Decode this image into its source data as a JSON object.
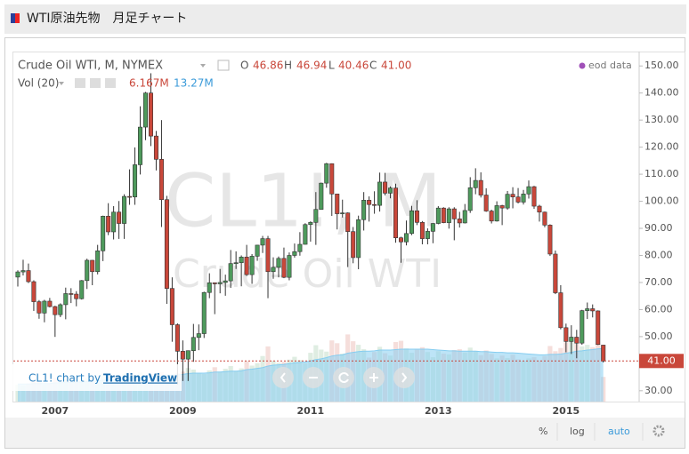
{
  "header": {
    "title": "WTI原油先物　月足チャート"
  },
  "chart_data": {
    "type": "candlestick",
    "symbol": "Crude Oil WTI, M, NYMEX",
    "ohlc_legend": [
      {
        "key": "O",
        "value": "46.86"
      },
      {
        "key": "H",
        "value": "46.94"
      },
      {
        "key": "L",
        "value": "40.46"
      },
      {
        "key": "C",
        "value": "41.00"
      }
    ],
    "volume_legend": {
      "name": "Vol (20)",
      "volume": "6.167M",
      "volume_ma": "13.27M"
    },
    "source": "eod data",
    "watermark": [
      "CL1!, M",
      "Crude Oil WTI"
    ],
    "last_price_label": "41.00",
    "attribution": [
      "CL1! chart by",
      "TradingView"
    ],
    "toolbar": [
      "%",
      "log",
      "auto"
    ],
    "up_color": "#4e9a5c",
    "down_color": "#c9473a",
    "volume_ma_color": "#86cdf0",
    "categories": [
      null,
      null,
      null,
      null,
      null,
      null,
      null,
      "2007",
      null,
      null,
      null,
      null,
      null,
      null,
      null,
      null,
      null,
      null,
      null,
      null,
      null,
      null,
      null,
      null,
      null,
      null,
      null,
      null,
      null,
      null,
      null,
      "2009",
      null,
      null,
      null,
      null,
      null,
      null,
      null,
      null,
      null,
      null,
      null,
      null,
      null,
      null,
      null,
      null,
      null,
      null,
      null,
      null,
      null,
      null,
      null,
      "2011",
      null,
      null,
      null,
      null,
      null,
      null,
      null,
      null,
      null,
      null,
      null,
      null,
      null,
      null,
      null,
      null,
      null,
      null,
      null,
      null,
      null,
      null,
      null,
      "2013",
      null,
      null,
      null,
      null,
      null,
      null,
      null,
      null,
      null,
      null,
      null,
      null,
      null,
      null,
      null,
      null,
      null,
      null,
      null,
      null,
      null,
      null,
      null,
      "2015",
      null,
      null,
      null,
      null,
      null,
      null,
      null
    ],
    "open": [
      72.0,
      73.9,
      74.4,
      70.3,
      62.9,
      58.7,
      63.1,
      61.1,
      58.1,
      61.8,
      65.9,
      65.7,
      64.0,
      70.7,
      78.2,
      74.0,
      81.7,
      94.5,
      88.7,
      96.0,
      91.8,
      101.8,
      101.6,
      113.5,
      127.4,
      140.0,
      124.1,
      115.5,
      100.6,
      67.8,
      54.4,
      44.6,
      41.7,
      44.8,
      49.7,
      51.1,
      66.3,
      69.9,
      69.5,
      70.0,
      70.6,
      77.0,
      77.3,
      79.4,
      72.9,
      79.7,
      83.8,
      86.2,
      74.0,
      75.6,
      78.9,
      71.9,
      80.0,
      81.4,
      84.1,
      91.4,
      92.2,
      97.0,
      106.7,
      113.9,
      102.7,
      95.4,
      95.7,
      88.8,
      79.2,
      93.2,
      100.4,
      98.8,
      98.5,
      107.1,
      103.0,
      104.9,
      86.5,
      85.0,
      88.1,
      96.5,
      92.2,
      86.2,
      88.9,
      91.8,
      97.5,
      92.1,
      97.2,
      93.5,
      92.0,
      96.6,
      105.0,
      107.7,
      102.3,
      96.4,
      92.7,
      98.4,
      97.5,
      102.6,
      101.6,
      99.7,
      102.7,
      105.4,
      98.2,
      96.0,
      91.2,
      80.5,
      66.2,
      53.3,
      48.2,
      49.8,
      47.6,
      59.6,
      60.3,
      59.5,
      46.86
    ],
    "high": [
      74.5,
      78.4,
      77.0,
      70.8,
      63.5,
      63.6,
      64.3,
      61.4,
      62.3,
      68.1,
      67.9,
      66.8,
      70.9,
      78.8,
      78.3,
      83.9,
      94.7,
      99.3,
      98.2,
      100.1,
      102.6,
      111.8,
      119.9,
      135.1,
      140.4,
      147.3,
      126.0,
      130.0,
      102.0,
      71.9,
      54.9,
      48.6,
      44.9,
      54.7,
      54.5,
      66.6,
      73.4,
      70.0,
      75.0,
      72.9,
      82.0,
      81.5,
      80.0,
      83.9,
      80.5,
      83.9,
      87.2,
      87.2,
      79.3,
      79.6,
      82.9,
      81.1,
      84.4,
      88.6,
      91.9,
      92.6,
      103.4,
      106.9,
      114.2,
      114.0,
      102.7,
      100.6,
      95.9,
      90.5,
      94.7,
      103.4,
      101.8,
      103.7,
      110.6,
      110.5,
      105.5,
      106.5,
      86.9,
      92.9,
      98.3,
      100.4,
      92.7,
      90.0,
      92.0,
      98.2,
      97.8,
      97.8,
      97.8,
      96.1,
      99.0,
      108.9,
      112.2,
      110.7,
      104.8,
      96.9,
      100.0,
      98.7,
      103.8,
      105.2,
      104.9,
      104.2,
      107.7,
      105.7,
      98.7,
      96.2,
      91.5,
      81.8,
      69.0,
      54.8,
      54.2,
      52.5,
      59.9,
      62.6,
      61.9,
      59.7,
      46.94
    ],
    "low": [
      68.5,
      72.6,
      69.8,
      59.5,
      56.6,
      55.3,
      60.8,
      49.9,
      57.2,
      56.4,
      62.4,
      61.2,
      63.7,
      67.6,
      69.0,
      73.0,
      77.9,
      87.5,
      85.9,
      86.1,
      86.1,
      98.7,
      98.7,
      109.9,
      122.6,
      120.4,
      111.4,
      90.5,
      62.1,
      48.1,
      32.4,
      33.6,
      33.6,
      40.7,
      45.0,
      49.5,
      64.2,
      58.3,
      66.0,
      65.1,
      68.0,
      75.0,
      68.6,
      72.4,
      69.5,
      78.0,
      80.9,
      64.2,
      71.4,
      71.9,
      71.6,
      70.8,
      79.2,
      79.9,
      84.0,
      85.1,
      83.9,
      96.9,
      105.0,
      94.6,
      89.6,
      94.0,
      75.7,
      77.1,
      74.9,
      89.2,
      92.5,
      95.4,
      96.2,
      102.2,
      101.1,
      84.7,
      77.3,
      83.7,
      87.5,
      91.2,
      84.1,
      84.1,
      84.5,
      91.5,
      91.9,
      89.9,
      85.6,
      90.3,
      91.8,
      95.7,
      102.6,
      101.4,
      96.1,
      91.8,
      92.5,
      91.2,
      96.9,
      97.4,
      99.2,
      98.8,
      101.0,
      97.2,
      92.5,
      90.4,
      79.8,
      65.7,
      52.7,
      44.2,
      43.6,
      42.0,
      47.0,
      56.5,
      57.1,
      46.9,
      40.46
    ],
    "close": [
      73.9,
      74.4,
      70.3,
      62.9,
      58.7,
      63.1,
      61.1,
      58.1,
      61.8,
      65.9,
      65.7,
      64.0,
      70.7,
      78.2,
      74.0,
      81.7,
      94.5,
      88.7,
      96.0,
      91.8,
      101.8,
      101.6,
      113.5,
      127.4,
      140.0,
      124.1,
      115.5,
      100.6,
      67.8,
      54.4,
      44.6,
      41.7,
      44.8,
      49.7,
      51.1,
      66.3,
      69.9,
      69.5,
      70.0,
      70.6,
      77.0,
      77.3,
      79.4,
      72.9,
      79.7,
      83.8,
      86.2,
      74.0,
      75.6,
      78.9,
      71.9,
      80.0,
      81.4,
      84.1,
      91.4,
      92.2,
      97.0,
      106.7,
      113.9,
      102.7,
      95.4,
      95.7,
      88.8,
      79.2,
      93.2,
      100.4,
      98.8,
      98.5,
      107.1,
      103.0,
      104.9,
      86.5,
      85.0,
      88.1,
      96.5,
      92.2,
      86.2,
      88.9,
      91.8,
      97.5,
      92.1,
      97.2,
      93.5,
      92.0,
      96.6,
      105.0,
      107.7,
      102.3,
      96.4,
      92.7,
      98.4,
      97.5,
      102.6,
      101.6,
      99.7,
      102.7,
      105.4,
      98.2,
      96.0,
      91.2,
      80.5,
      66.2,
      53.3,
      48.2,
      49.8,
      47.6,
      59.6,
      60.3,
      59.5,
      47.1,
      41.0
    ],
    "volume": [
      4.2,
      4.0,
      4.5,
      5.1,
      4.8,
      4.3,
      4.6,
      5.9,
      5.0,
      5.6,
      5.0,
      5.4,
      5.1,
      5.8,
      6.3,
      5.9,
      6.8,
      6.5,
      5.7,
      6.4,
      6.9,
      6.2,
      6.7,
      7.3,
      6.5,
      6.9,
      6.0,
      7.4,
      6.8,
      6.2,
      7.1,
      7.5,
      8.4,
      8.0,
      7.2,
      6.9,
      7.8,
      8.6,
      7.5,
      8.2,
      8.9,
      7.6,
      8.3,
      10.1,
      9.0,
      9.6,
      11.4,
      13.8,
      10.2,
      9.7,
      9.9,
      10.5,
      11.2,
      10.4,
      9.6,
      12.2,
      14.1,
      13.0,
      12.5,
      15.3,
      14.6,
      12.0,
      16.8,
      15.1,
      14.2,
      13.1,
      11.0,
      12.4,
      13.7,
      12.1,
      11.5,
      14.9,
      15.2,
      13.3,
      12.2,
      13.0,
      13.6,
      12.4,
      11.1,
      12.6,
      12.0,
      11.8,
      12.9,
      13.1,
      12.3,
      13.5,
      12.7,
      11.6,
      12.8,
      11.9,
      10.8,
      11.5,
      10.9,
      11.7,
      10.6,
      10.2,
      10.8,
      11.1,
      10.3,
      11.4,
      13.9,
      12.6,
      13.4,
      14.8,
      15.1,
      15.9,
      13.8,
      14.2,
      13.6,
      14.5,
      6.167
    ],
    "volume_ma": [
      4.4,
      4.4,
      4.4,
      4.5,
      4.5,
      4.5,
      4.5,
      4.7,
      4.7,
      4.8,
      4.8,
      4.9,
      4.9,
      5.0,
      5.1,
      5.2,
      5.3,
      5.4,
      5.4,
      5.6,
      5.7,
      5.8,
      5.9,
      6.1,
      6.2,
      6.3,
      6.3,
      6.5,
      6.6,
      6.6,
      6.7,
      6.8,
      7.0,
      7.1,
      7.1,
      7.1,
      7.2,
      7.4,
      7.4,
      7.5,
      7.6,
      7.6,
      7.7,
      8.0,
      8.1,
      8.3,
      8.5,
      8.9,
      9.1,
      9.2,
      9.3,
      9.5,
      9.7,
      9.8,
      9.9,
      10.2,
      10.5,
      10.7,
      11.0,
      11.4,
      11.6,
      11.7,
      12.1,
      12.3,
      12.5,
      12.6,
      12.6,
      12.7,
      12.9,
      12.9,
      12.9,
      13.0,
      13.1,
      13.1,
      13.1,
      13.1,
      13.1,
      13.1,
      13.0,
      12.9,
      12.8,
      12.7,
      12.7,
      12.6,
      12.6,
      12.6,
      12.6,
      12.5,
      12.5,
      12.4,
      12.3,
      12.3,
      12.2,
      12.2,
      12.1,
      12.0,
      11.9,
      11.8,
      11.7,
      11.7,
      11.8,
      11.8,
      11.9,
      12.1,
      12.3,
      12.6,
      12.7,
      12.9,
      13.0,
      13.2,
      13.27
    ],
    "ylim": [
      26,
      155
    ],
    "volume_ylim": [
      0,
      20
    ],
    "yticks": [
      {
        "value": 30,
        "label": "30.00"
      },
      {
        "value": 40,
        "label": "40.00"
      },
      {
        "value": 50,
        "label": "50.00"
      },
      {
        "value": 60,
        "label": "60.00"
      },
      {
        "value": 70,
        "label": "70.00"
      },
      {
        "value": 80,
        "label": "80.00"
      },
      {
        "value": 90,
        "label": "90.00"
      },
      {
        "value": 100,
        "label": "100.00"
      },
      {
        "value": 110,
        "label": "110.00"
      },
      {
        "value": 120,
        "label": "120.00"
      },
      {
        "value": 130,
        "label": "130.00"
      },
      {
        "value": 140,
        "label": "140.00"
      },
      {
        "value": 150,
        "label": "150.00"
      }
    ]
  }
}
